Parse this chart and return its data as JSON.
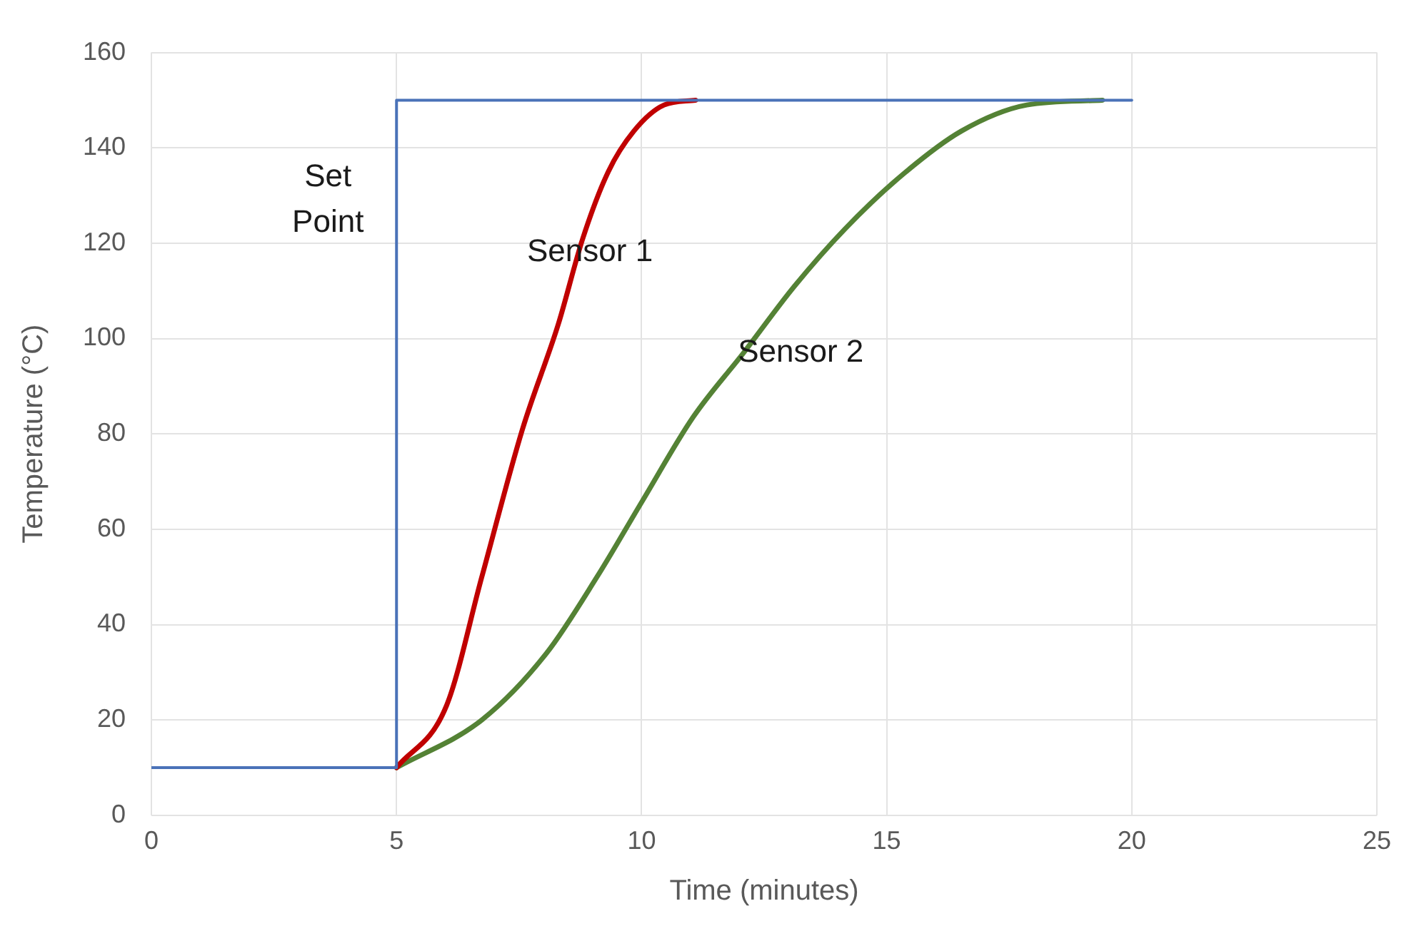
{
  "chart_data": {
    "type": "line",
    "xlabel": "Time (minutes)",
    "ylabel": "Temperature (°C)",
    "xlim": [
      0,
      25
    ],
    "xticks": [
      0,
      5,
      10,
      15,
      20,
      25
    ],
    "ylim": [
      0,
      160
    ],
    "yticks": [
      0,
      20,
      40,
      60,
      80,
      100,
      120,
      140,
      160
    ],
    "grid": true,
    "legend": false,
    "marker": "none",
    "line_style": "solid",
    "series": [
      {
        "name": "Set Point",
        "color": "#4a72b8",
        "x": [
          0,
          5,
          5,
          20
        ],
        "values": [
          10,
          10,
          150,
          150
        ]
      },
      {
        "name": "Sensor 1",
        "color": "#c00000",
        "x": [
          5,
          6.02,
          6.74,
          7.57,
          8.3,
          8.8,
          9.32,
          9.84,
          10.46,
          11.1
        ],
        "values": [
          10,
          23,
          50,
          81,
          103,
          121,
          135,
          143.5,
          149,
          150
        ]
      },
      {
        "name": "Sensor 2",
        "color": "#548235",
        "x": [
          5,
          6.74,
          8.06,
          9.09,
          10.02,
          11.05,
          12.08,
          13.12,
          14.15,
          15.28,
          16.52,
          17.86,
          19.4
        ],
        "values": [
          10,
          20,
          34,
          50,
          66,
          83.5,
          97,
          111,
          123,
          134,
          143.5,
          149,
          150
        ]
      }
    ]
  }
}
